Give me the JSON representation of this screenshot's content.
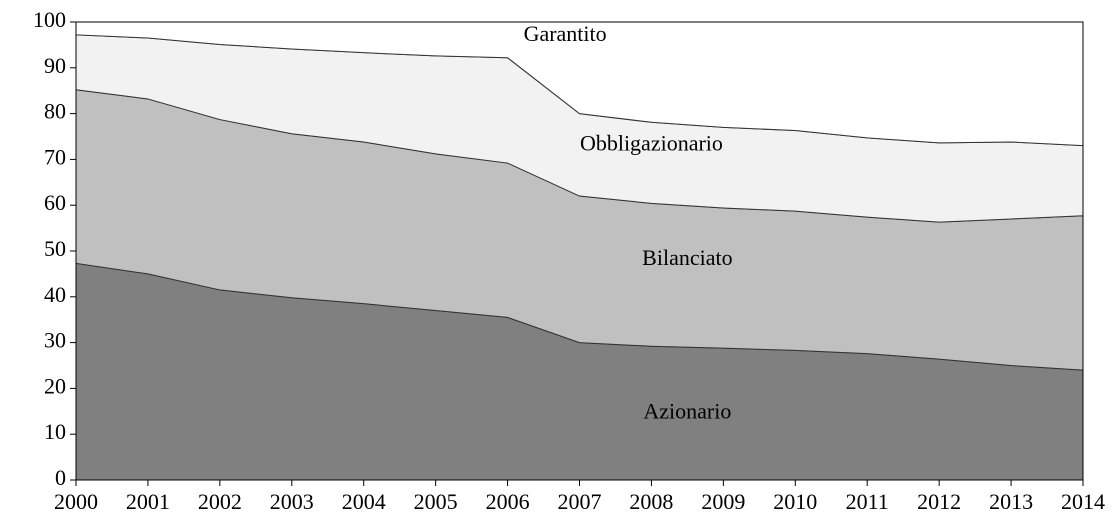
{
  "chart_data": {
    "type": "stacked_area",
    "x": [
      2000,
      2001,
      2002,
      2003,
      2004,
      2005,
      2006,
      2007,
      2008,
      2009,
      2010,
      2011,
      2012,
      2013,
      2014
    ],
    "series": [
      {
        "name": "Azionario",
        "color": "#808080",
        "values": [
          47.3,
          45,
          41.5,
          39.8,
          38.5,
          37,
          35.5,
          30,
          29.2,
          28.8,
          28.3,
          27.6,
          26.4,
          25,
          24
        ]
      },
      {
        "name": "Bilanciato",
        "color": "#c0c0c0",
        "values": [
          37.9,
          38.2,
          37.2,
          35.8,
          35.3,
          34.2,
          33.7,
          32,
          31.2,
          30.6,
          30.4,
          29.8,
          29.9,
          32,
          33.7
        ]
      },
      {
        "name": "Obbligazionario",
        "color": "#f2f2f2",
        "values": [
          12,
          13.3,
          16.4,
          18.5,
          19.5,
          21.4,
          23,
          18,
          17.7,
          17.6,
          17.6,
          17.3,
          17.3,
          16.8,
          15.3
        ]
      },
      {
        "name": "Garantito",
        "color": "#ffffff",
        "values": [
          2.8,
          3.5,
          4.9,
          5.9,
          6.7,
          7.4,
          7.8,
          20,
          21.9,
          23,
          23.7,
          25.3,
          26.4,
          26.2,
          27
        ]
      }
    ],
    "xlim": [
      2000,
      2014
    ],
    "xticks": [
      2000,
      2001,
      2002,
      2003,
      2004,
      2005,
      2006,
      2007,
      2008,
      2009,
      2010,
      2011,
      2012,
      2013,
      2014
    ],
    "ylim": [
      0,
      100
    ],
    "yticks": [
      0,
      10,
      20,
      30,
      40,
      50,
      60,
      70,
      80,
      90,
      100
    ]
  }
}
